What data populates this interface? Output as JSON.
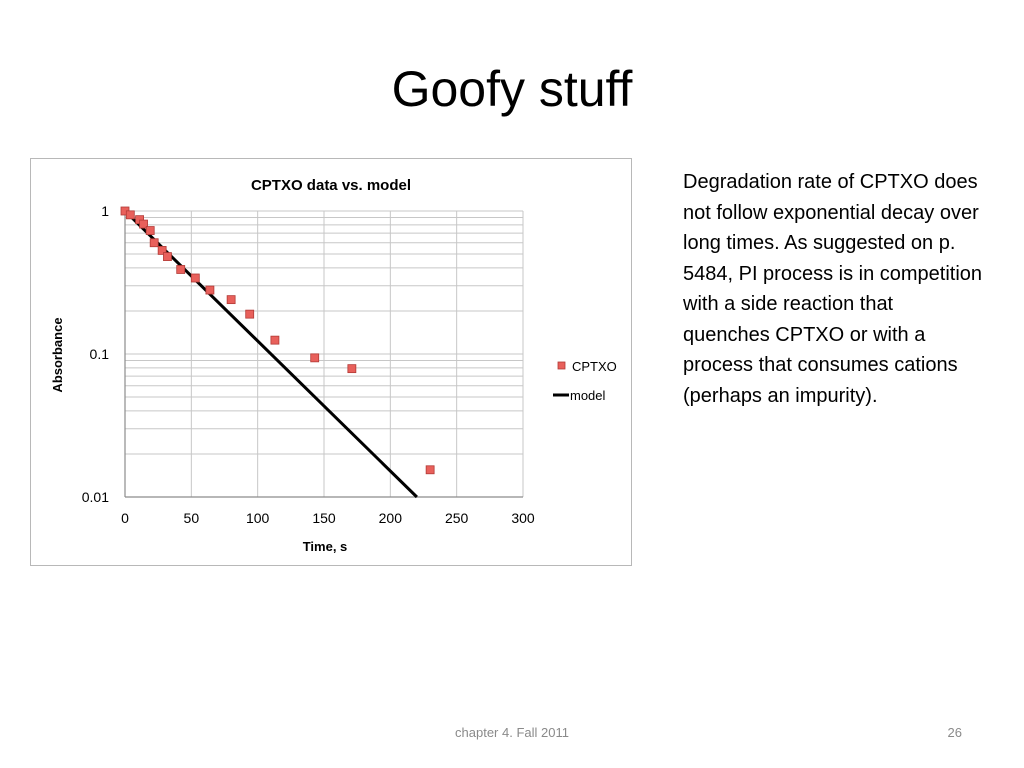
{
  "slide": {
    "title": "Goofy stuff",
    "body": "Degradation rate of CPTXO does not follow exponential decay over long times. As suggested on p. 5484, PI process is in competition with a side reaction that quenches CPTXO or with a process that consumes cations (perhaps an impurity).",
    "footer": "chapter 4. Fall 2011",
    "page_number": "26"
  },
  "chart_data": {
    "type": "scatter",
    "title": "CPTXO data vs. model",
    "xlabel": "Time, s",
    "ylabel": "Absorbance",
    "xlim": [
      0,
      300
    ],
    "ylim": [
      0.01,
      1
    ],
    "yscale": "log",
    "x_ticks": [
      "0",
      "50",
      "100",
      "150",
      "200",
      "250",
      "300"
    ],
    "y_ticks": [
      "1",
      "0.1",
      "0.01"
    ],
    "grid": true,
    "legend_position": "right",
    "series": [
      {
        "name": "CPTXO",
        "kind": "markers",
        "color": "#e8605b",
        "x": [
          0,
          4,
          11,
          14,
          19,
          22,
          28,
          32,
          42,
          53,
          64,
          80,
          94,
          113,
          143,
          171,
          230
        ],
        "y": [
          1.0,
          0.94,
          0.87,
          0.81,
          0.73,
          0.6,
          0.53,
          0.48,
          0.39,
          0.34,
          0.28,
          0.24,
          0.19,
          0.125,
          0.094,
          0.079,
          0.0155
        ]
      },
      {
        "name": "model",
        "kind": "line",
        "color": "#000000",
        "x": [
          0,
          220
        ],
        "y": [
          1.0,
          0.01
        ]
      }
    ]
  }
}
